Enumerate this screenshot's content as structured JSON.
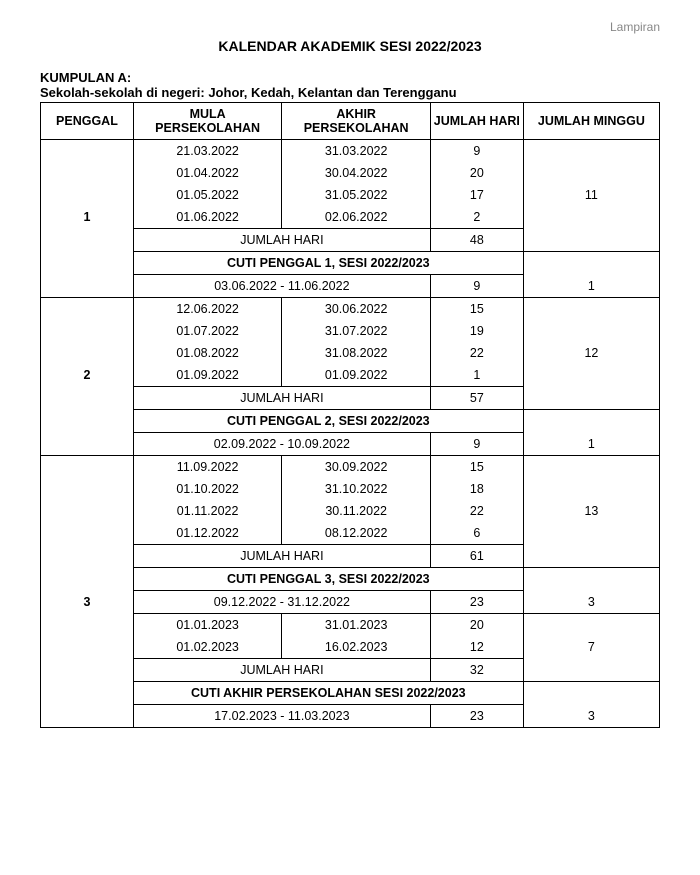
{
  "document": {
    "lampiran": "Lampiran",
    "title": "KALENDAR AKADEMIK SESI 2022/2023",
    "group_title": "KUMPULAN A:",
    "group_sub": "Sekolah-sekolah di negeri: Johor, Kedah, Kelantan dan Terengganu"
  },
  "headers": {
    "penggal": "PENGGAL",
    "mula": "MULA PERSEKOLAHAN",
    "akhir": "AKHIR PERSEKOLAHAN",
    "jumlah_hari": "JUMLAH HARI",
    "jumlah_minggu": "JUMLAH MINGGU"
  },
  "labels": {
    "jumlah_hari": "JUMLAH HARI"
  },
  "penggal1": {
    "num": "1",
    "rows": [
      {
        "mula": "21.03.2022",
        "akhir": "31.03.2022",
        "hari": "9"
      },
      {
        "mula": "01.04.2022",
        "akhir": "30.04.2022",
        "hari": "20"
      },
      {
        "mula": "01.05.2022",
        "akhir": "31.05.2022",
        "hari": "17"
      },
      {
        "mula": "01.06.2022",
        "akhir": "02.06.2022",
        "hari": "2"
      }
    ],
    "total_hari": "48",
    "minggu": "11",
    "cuti_title": "CUTI PENGGAL 1, SESI 2022/2023",
    "cuti_range": "03.06.2022  -  11.06.2022",
    "cuti_hari": "9",
    "cuti_minggu": "1"
  },
  "penggal2": {
    "num": "2",
    "rows": [
      {
        "mula": "12.06.2022",
        "akhir": "30.06.2022",
        "hari": "15"
      },
      {
        "mula": "01.07.2022",
        "akhir": "31.07.2022",
        "hari": "19"
      },
      {
        "mula": "01.08.2022",
        "akhir": "31.08.2022",
        "hari": "22"
      },
      {
        "mula": "01.09.2022",
        "akhir": "01.09.2022",
        "hari": "1"
      }
    ],
    "total_hari": "57",
    "minggu": "12",
    "cuti_title": "CUTI PENGGAL 2, SESI 2022/2023",
    "cuti_range": "02.09.2022  -  10.09.2022",
    "cuti_hari": "9",
    "cuti_minggu": "1"
  },
  "penggal3": {
    "num": "3",
    "rows_a": [
      {
        "mula": "11.09.2022",
        "akhir": "30.09.2022",
        "hari": "15"
      },
      {
        "mula": "01.10.2022",
        "akhir": "31.10.2022",
        "hari": "18"
      },
      {
        "mula": "01.11.2022",
        "akhir": "30.11.2022",
        "hari": "22"
      },
      {
        "mula": "01.12.2022",
        "akhir": "08.12.2022",
        "hari": "6"
      }
    ],
    "total_hari_a": "61",
    "minggu_a": "13",
    "cuti_a_title": "CUTI PENGGAL 3, SESI 2022/2023",
    "cuti_a_range": "09.12.2022  -  31.12.2022",
    "cuti_a_hari": "23",
    "cuti_a_minggu": "3",
    "rows_b": [
      {
        "mula": "01.01.2023",
        "akhir": "31.01.2023",
        "hari": "20"
      },
      {
        "mula": "01.02.2023",
        "akhir": "16.02.2023",
        "hari": "12"
      }
    ],
    "total_hari_b": "32",
    "minggu_b": "7",
    "cuti_b_title": "CUTI AKHIR PERSEKOLAHAN SESI 2022/2023",
    "cuti_b_range": "17.02.2023  -  11.03.2023",
    "cuti_b_hari": "23",
    "cuti_b_minggu": "3"
  }
}
